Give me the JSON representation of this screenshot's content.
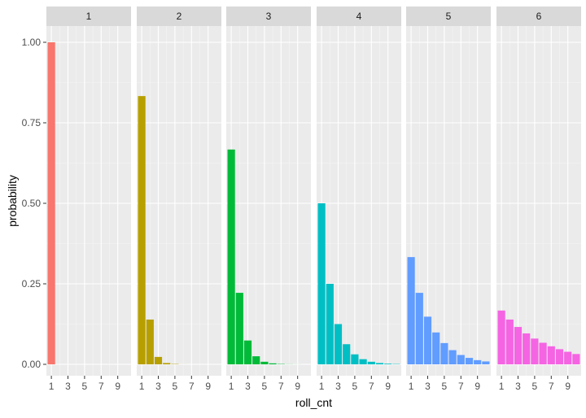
{
  "chart_data": {
    "type": "bar",
    "facet_variable_levels": [
      "1",
      "2",
      "3",
      "4",
      "5",
      "6"
    ],
    "xlabel": "roll_cnt",
    "ylabel": "probability",
    "ylim": [
      0,
      1.0
    ],
    "y_ticks": [
      0.0,
      0.25,
      0.5,
      0.75,
      1.0
    ],
    "y_tick_labels": [
      "0.00",
      "0.25",
      "0.50",
      "0.75",
      "1.00"
    ],
    "x_ticks": [
      1,
      3,
      5,
      7,
      9
    ],
    "x_tick_labels": [
      "1",
      "3",
      "5",
      "7",
      "9"
    ],
    "xlim": [
      0.4,
      10.6
    ],
    "grid": true,
    "legend": "none",
    "panels": [
      {
        "facet": "1",
        "color": "#F8766D",
        "x": [
          1,
          2,
          3,
          4,
          5,
          6,
          7,
          8,
          9,
          10
        ],
        "values": [
          1.0,
          0,
          0,
          0,
          0,
          0,
          0,
          0,
          0,
          0
        ]
      },
      {
        "facet": "2",
        "color": "#B79F00",
        "x": [
          1,
          2,
          3,
          4,
          5,
          6,
          7,
          8,
          9,
          10
        ],
        "values": [
          0.833,
          0.139,
          0.023,
          0.004,
          0.001,
          0.0001,
          0,
          0,
          0,
          0
        ]
      },
      {
        "facet": "3",
        "color": "#00BA38",
        "x": [
          1,
          2,
          3,
          4,
          5,
          6,
          7,
          8,
          9,
          10
        ],
        "values": [
          0.667,
          0.222,
          0.074,
          0.025,
          0.008,
          0.003,
          0.001,
          0.0003,
          0.0001,
          0
        ]
      },
      {
        "facet": "4",
        "color": "#00BFC4",
        "x": [
          1,
          2,
          3,
          4,
          5,
          6,
          7,
          8,
          9,
          10
        ],
        "values": [
          0.5,
          0.25,
          0.125,
          0.0625,
          0.031,
          0.016,
          0.008,
          0.004,
          0.002,
          0.001
        ]
      },
      {
        "facet": "5",
        "color": "#619CFF",
        "x": [
          1,
          2,
          3,
          4,
          5,
          6,
          7,
          8,
          9,
          10
        ],
        "values": [
          0.333,
          0.222,
          0.148,
          0.099,
          0.066,
          0.044,
          0.029,
          0.02,
          0.013,
          0.009
        ]
      },
      {
        "facet": "6",
        "color": "#F564E3",
        "x": [
          1,
          2,
          3,
          4,
          5,
          6,
          7,
          8,
          9,
          10
        ],
        "values": [
          0.167,
          0.139,
          0.116,
          0.096,
          0.08,
          0.067,
          0.056,
          0.047,
          0.039,
          0.032
        ]
      }
    ]
  },
  "theme": {
    "panel_background": "#EBEBEB",
    "strip_background": "#D9D9D9",
    "grid_major": "#FFFFFF",
    "grid_minor": "#F5F5F5",
    "tick_color": "#333333"
  }
}
